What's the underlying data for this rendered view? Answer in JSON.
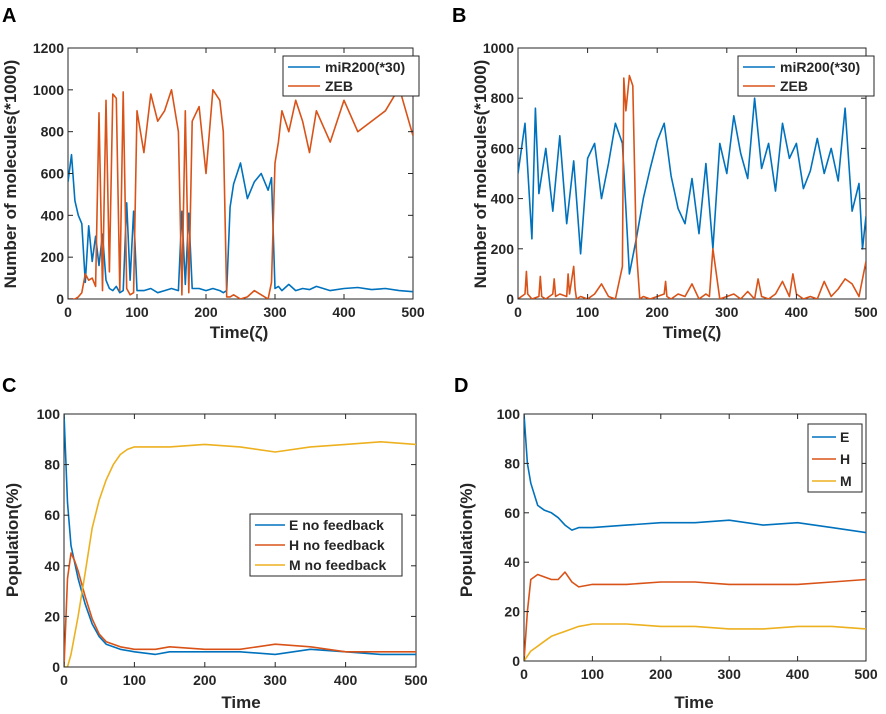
{
  "colors": {
    "blue": "#0072BD",
    "orange": "#D95319",
    "yellow": "#EDB120",
    "axis": "#262626"
  },
  "chart_data": [
    {
      "panel": "A",
      "type": "line",
      "title": "",
      "xlabel": "Time(ζ)",
      "ylabel": "Number of molecules(*1000)",
      "xlim": [
        0,
        500
      ],
      "ylim": [
        0,
        1200
      ],
      "xticks": [
        0,
        100,
        200,
        300,
        400,
        500
      ],
      "yticks": [
        0,
        200,
        400,
        600,
        800,
        1000,
        1200
      ],
      "legend_position": "top-right",
      "series": [
        {
          "name": "miR200(*30)",
          "color": "#0072BD",
          "x": [
            0,
            5,
            10,
            15,
            20,
            25,
            30,
            35,
            40,
            45,
            50,
            55,
            60,
            65,
            70,
            75,
            80,
            85,
            90,
            95,
            100,
            110,
            120,
            130,
            140,
            150,
            160,
            165,
            170,
            175,
            180,
            190,
            200,
            210,
            220,
            225,
            230,
            235,
            240,
            250,
            260,
            270,
            280,
            290,
            295,
            300,
            305,
            310,
            320,
            330,
            340,
            350,
            360,
            380,
            400,
            420,
            440,
            460,
            480,
            500
          ],
          "y": [
            560,
            690,
            470,
            400,
            360,
            80,
            350,
            180,
            300,
            160,
            310,
            90,
            50,
            40,
            60,
            30,
            40,
            460,
            90,
            420,
            40,
            40,
            50,
            30,
            40,
            50,
            40,
            420,
            70,
            410,
            50,
            50,
            40,
            50,
            40,
            30,
            40,
            440,
            550,
            650,
            480,
            560,
            600,
            520,
            580,
            50,
            60,
            40,
            70,
            40,
            50,
            45,
            60,
            40,
            50,
            55,
            45,
            50,
            40,
            35
          ]
        },
        {
          "name": "ZEB",
          "color": "#D95319",
          "x": [
            0,
            5,
            10,
            15,
            20,
            25,
            30,
            35,
            40,
            45,
            50,
            55,
            60,
            65,
            70,
            75,
            80,
            85,
            90,
            95,
            100,
            110,
            120,
            130,
            140,
            150,
            160,
            165,
            170,
            175,
            180,
            190,
            200,
            210,
            220,
            225,
            230,
            235,
            240,
            250,
            260,
            270,
            280,
            290,
            295,
            300,
            305,
            310,
            320,
            330,
            340,
            350,
            360,
            380,
            400,
            420,
            440,
            460,
            480,
            500
          ],
          "y": [
            0,
            0,
            0,
            10,
            30,
            120,
            90,
            100,
            60,
            890,
            40,
            950,
            130,
            980,
            960,
            40,
            990,
            50,
            20,
            30,
            900,
            700,
            980,
            850,
            900,
            1000,
            800,
            20,
            900,
            30,
            850,
            920,
            600,
            1000,
            950,
            800,
            10,
            10,
            20,
            0,
            10,
            40,
            20,
            0,
            80,
            650,
            750,
            900,
            800,
            950,
            850,
            700,
            900,
            750,
            950,
            800,
            850,
            900,
            1010,
            780
          ]
        }
      ]
    },
    {
      "panel": "B",
      "type": "line",
      "title": "",
      "xlabel": "Time(ζ)",
      "ylabel": "Number of molecules(*1000)",
      "xlim": [
        0,
        500
      ],
      "ylim": [
        0,
        1000
      ],
      "xticks": [
        0,
        100,
        200,
        300,
        400,
        500
      ],
      "yticks": [
        0,
        200,
        400,
        600,
        800,
        1000
      ],
      "legend_position": "top-right",
      "series": [
        {
          "name": "miR200(*30)",
          "color": "#0072BD",
          "x": [
            0,
            10,
            20,
            25,
            30,
            40,
            50,
            60,
            70,
            80,
            90,
            100,
            110,
            120,
            130,
            140,
            150,
            160,
            170,
            180,
            190,
            200,
            210,
            220,
            230,
            240,
            250,
            260,
            270,
            280,
            290,
            300,
            310,
            320,
            330,
            340,
            350,
            360,
            370,
            380,
            390,
            400,
            410,
            420,
            430,
            440,
            450,
            460,
            470,
            480,
            490,
            495,
            500
          ],
          "y": [
            500,
            700,
            240,
            760,
            420,
            600,
            350,
            650,
            300,
            550,
            180,
            560,
            620,
            400,
            540,
            700,
            620,
            100,
            240,
            400,
            520,
            630,
            700,
            490,
            360,
            300,
            480,
            260,
            540,
            200,
            620,
            500,
            730,
            580,
            480,
            800,
            520,
            620,
            430,
            700,
            560,
            620,
            440,
            510,
            640,
            500,
            600,
            470,
            760,
            350,
            460,
            200,
            330
          ]
        },
        {
          "name": "ZEB",
          "color": "#D95319",
          "x": [
            0,
            10,
            12,
            14,
            20,
            30,
            32,
            34,
            40,
            50,
            52,
            54,
            60,
            70,
            72,
            74,
            80,
            82,
            84,
            90,
            100,
            110,
            120,
            130,
            140,
            150,
            152,
            155,
            160,
            165,
            170,
            175,
            180,
            190,
            200,
            210,
            212,
            214,
            220,
            230,
            240,
            250,
            260,
            270,
            275,
            280,
            290,
            300,
            310,
            320,
            330,
            340,
            345,
            350,
            360,
            370,
            380,
            390,
            395,
            400,
            410,
            420,
            430,
            440,
            450,
            460,
            470,
            480,
            490,
            500
          ],
          "y": [
            0,
            20,
            110,
            20,
            0,
            10,
            90,
            10,
            0,
            20,
            80,
            10,
            20,
            10,
            100,
            20,
            130,
            40,
            0,
            10,
            0,
            20,
            60,
            10,
            0,
            130,
            880,
            750,
            890,
            850,
            200,
            0,
            10,
            0,
            10,
            20,
            70,
            10,
            0,
            20,
            10,
            60,
            0,
            20,
            10,
            200,
            0,
            10,
            20,
            0,
            30,
            0,
            80,
            10,
            0,
            20,
            70,
            10,
            100,
            20,
            0,
            10,
            0,
            70,
            10,
            40,
            80,
            60,
            10,
            150
          ]
        }
      ]
    },
    {
      "panel": "C",
      "type": "line",
      "title": "",
      "xlabel": "Time",
      "ylabel": "Population(%)",
      "xlim": [
        0,
        500
      ],
      "ylim": [
        0,
        100
      ],
      "xticks": [
        0,
        100,
        200,
        300,
        400,
        500
      ],
      "yticks": [
        0,
        20,
        40,
        60,
        80,
        100
      ],
      "legend_position": "center-right",
      "series": [
        {
          "name": "E no feedback",
          "color": "#0072BD",
          "x": [
            0,
            5,
            10,
            20,
            30,
            40,
            50,
            60,
            80,
            100,
            130,
            150,
            200,
            250,
            300,
            350,
            400,
            450,
            500
          ],
          "y": [
            100,
            65,
            48,
            35,
            25,
            17,
            12,
            9,
            7,
            6,
            5,
            6,
            6,
            6,
            5,
            7,
            6,
            5,
            5
          ]
        },
        {
          "name": "H no feedback",
          "color": "#D95319",
          "x": [
            0,
            5,
            10,
            15,
            20,
            30,
            40,
            50,
            60,
            80,
            100,
            130,
            150,
            200,
            250,
            300,
            350,
            400,
            450,
            500
          ],
          "y": [
            0,
            35,
            45,
            42,
            38,
            28,
            19,
            13,
            10,
            8,
            7,
            7,
            8,
            7,
            7,
            9,
            8,
            6,
            6,
            6
          ]
        },
        {
          "name": "M no feedback",
          "color": "#EDB120",
          "x": [
            0,
            5,
            10,
            20,
            30,
            40,
            50,
            60,
            70,
            80,
            90,
            100,
            120,
            150,
            200,
            250,
            300,
            350,
            400,
            450,
            500
          ],
          "y": [
            0,
            0,
            5,
            20,
            37,
            55,
            66,
            74,
            80,
            84,
            86,
            87,
            87,
            87,
            88,
            87,
            85,
            87,
            88,
            89,
            88
          ]
        }
      ]
    },
    {
      "panel": "D",
      "type": "line",
      "title": "",
      "xlabel": "Time",
      "ylabel": "Population(%)",
      "xlim": [
        0,
        500
      ],
      "ylim": [
        0,
        100
      ],
      "xticks": [
        0,
        100,
        200,
        300,
        400,
        500
      ],
      "yticks": [
        0,
        20,
        40,
        60,
        80,
        100
      ],
      "legend_position": "top-right",
      "series": [
        {
          "name": "E",
          "color": "#0072BD",
          "x": [
            0,
            5,
            10,
            20,
            30,
            40,
            50,
            60,
            70,
            80,
            100,
            150,
            200,
            250,
            300,
            350,
            400,
            450,
            500
          ],
          "y": [
            100,
            80,
            72,
            63,
            61,
            60,
            58,
            55,
            53,
            54,
            54,
            55,
            56,
            56,
            57,
            55,
            56,
            54,
            52
          ]
        },
        {
          "name": "H",
          "color": "#D95319",
          "x": [
            0,
            5,
            10,
            20,
            30,
            40,
            50,
            60,
            70,
            80,
            100,
            150,
            200,
            250,
            300,
            350,
            400,
            450,
            500
          ],
          "y": [
            0,
            20,
            33,
            35,
            34,
            33,
            33,
            36,
            32,
            30,
            31,
            31,
            32,
            32,
            31,
            31,
            31,
            32,
            33
          ]
        },
        {
          "name": "M",
          "color": "#EDB120",
          "x": [
            0,
            5,
            10,
            20,
            30,
            40,
            50,
            60,
            70,
            80,
            100,
            150,
            200,
            250,
            300,
            350,
            400,
            450,
            500
          ],
          "y": [
            0,
            2,
            4,
            6,
            8,
            10,
            11,
            12,
            13,
            14,
            15,
            15,
            14,
            14,
            13,
            13,
            14,
            14,
            13
          ]
        }
      ]
    }
  ]
}
